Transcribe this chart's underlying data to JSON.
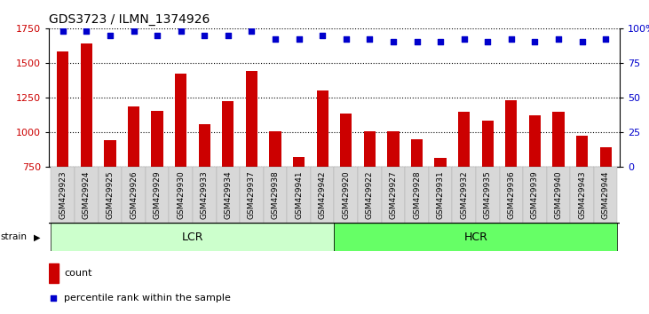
{
  "title": "GDS3723 / ILMN_1374926",
  "samples": [
    "GSM429923",
    "GSM429924",
    "GSM429925",
    "GSM429926",
    "GSM429929",
    "GSM429930",
    "GSM429933",
    "GSM429934",
    "GSM429937",
    "GSM429938",
    "GSM429941",
    "GSM429942",
    "GSM429920",
    "GSM429922",
    "GSM429927",
    "GSM429928",
    "GSM429931",
    "GSM429932",
    "GSM429935",
    "GSM429936",
    "GSM429939",
    "GSM429940",
    "GSM429943",
    "GSM429944"
  ],
  "counts": [
    1580,
    1640,
    940,
    1185,
    1150,
    1420,
    1055,
    1220,
    1440,
    1005,
    820,
    1300,
    1130,
    1005,
    1005,
    945,
    810,
    1145,
    1080,
    1230,
    1120,
    1145,
    975,
    890
  ],
  "percentile_ranks": [
    98,
    98,
    95,
    98,
    95,
    98,
    95,
    95,
    98,
    92,
    92,
    95,
    92,
    92,
    90,
    90,
    90,
    92,
    90,
    92,
    90,
    92,
    90,
    92
  ],
  "lcr_count": 12,
  "hcr_count": 12,
  "ylim_left": [
    750,
    1750
  ],
  "ylim_right": [
    0,
    100
  ],
  "yticks_left": [
    750,
    1000,
    1250,
    1500,
    1750
  ],
  "yticks_right": [
    0,
    25,
    50,
    75,
    100
  ],
  "bar_color": "#cc0000",
  "dot_color": "#0000cc",
  "lcr_color": "#ccffcc",
  "hcr_color": "#66ff66",
  "title_fontsize": 10,
  "tick_fontsize": 6.5,
  "label_fontsize": 8,
  "strain_fontsize": 7.5,
  "band_fontsize": 9
}
